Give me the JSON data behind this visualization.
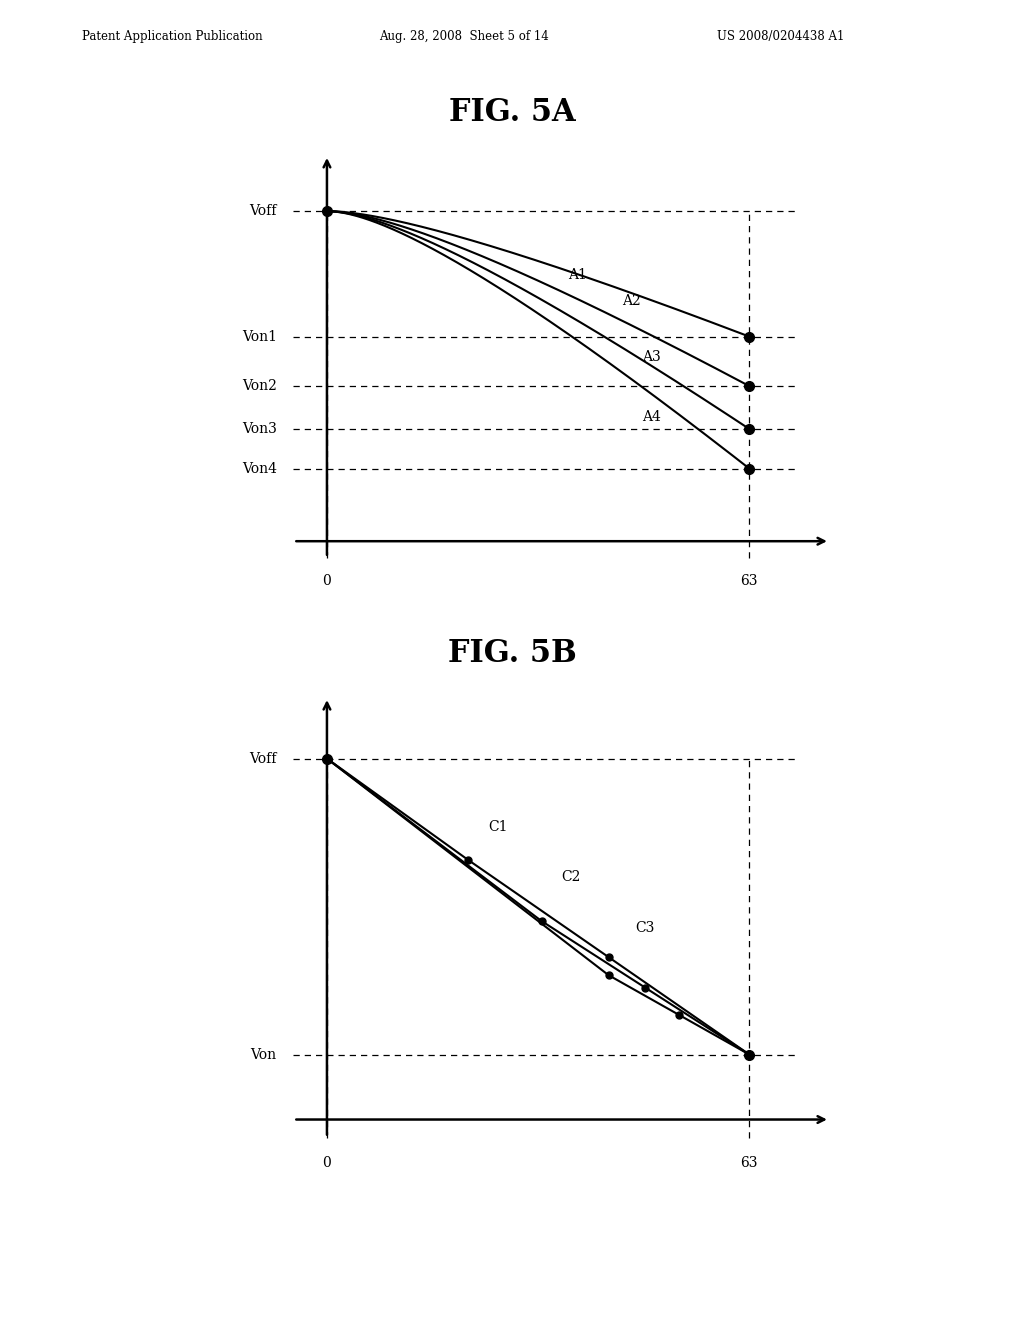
{
  "background_color": "#ffffff",
  "header_left": "Patent Application Publication",
  "header_mid": "Aug. 28, 2008  Sheet 5 of 14",
  "header_right": "US 2008/0204438 A1",
  "fig5a_title": "FIG. 5A",
  "fig5b_title": "FIG. 5B",
  "fig5a_ylabel_voff": "Voff",
  "fig5a_ylabel_von1": "Von1",
  "fig5a_ylabel_von2": "Von2",
  "fig5a_ylabel_von3": "Von3",
  "fig5a_ylabel_von4": "Von4",
  "fig5a_xlabel_0": "0",
  "fig5a_xlabel_63": "63",
  "fig5b_ylabel_voff": "Voff",
  "fig5b_ylabel_von": "Von",
  "fig5b_xlabel_0": "0",
  "fig5b_xlabel_63": "63",
  "fig5a_voff": 1.0,
  "fig5a_von1": 0.62,
  "fig5a_von2": 0.47,
  "fig5a_von3": 0.34,
  "fig5a_von4": 0.22,
  "fig5b_voff": 1.0,
  "fig5b_von": 0.18,
  "fig5b_c1_mid": [
    21,
    0.72
  ],
  "fig5b_c2_mid": [
    32,
    0.55
  ],
  "fig5b_c3_mid": [
    42,
    0.4
  ]
}
